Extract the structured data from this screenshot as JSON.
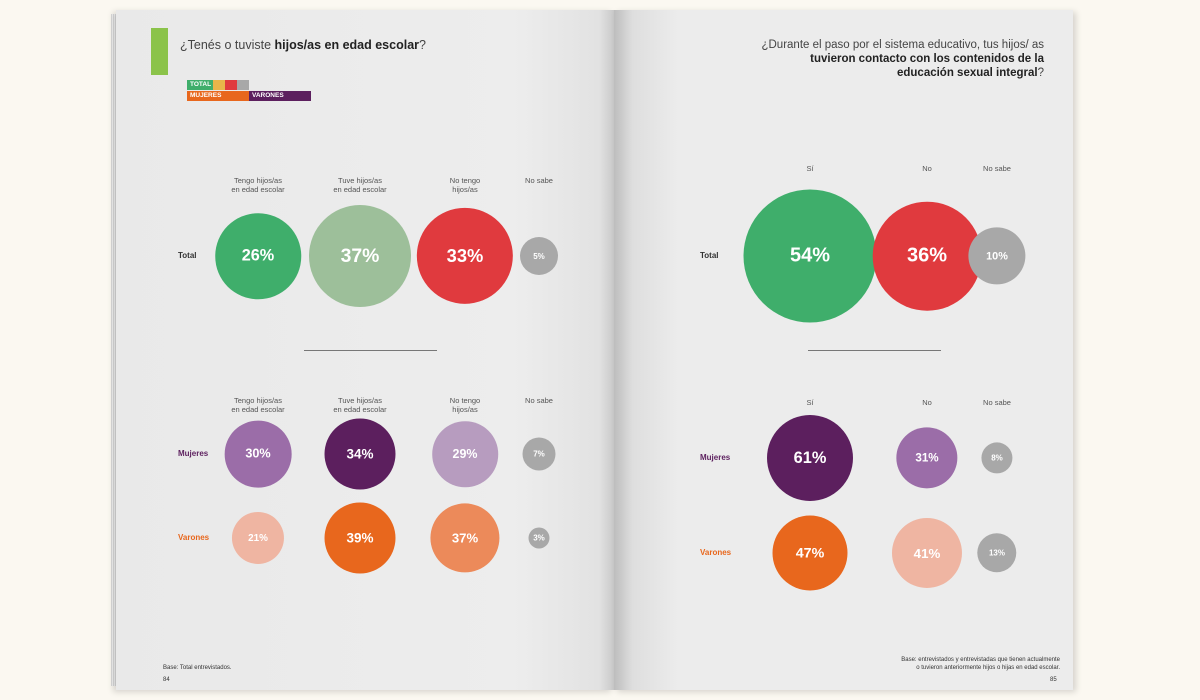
{
  "chart_data": [
    {
      "type": "bubble",
      "title_plain": "¿Tenés o tuviste ",
      "title_bold": "hijos/as en edad escolar",
      "title_tail": "?",
      "legend": {
        "total": "TOTAL",
        "mujeres": "MUJERES",
        "varones": "VARONES"
      },
      "categories": [
        "Tengo hijos/as\nen edad escolar",
        "Tuve hijos/as\nen edad escolar",
        "No tengo\nhijos/as",
        "No sabe"
      ],
      "series": [
        {
          "name": "Total",
          "values": [
            26,
            37,
            33,
            5
          ],
          "labels": [
            "26%",
            "37%",
            "33%",
            "5%"
          ],
          "colors": [
            "#3fae6b",
            "#9dbf9a",
            "#e03a3e",
            "#a8a8a8"
          ]
        },
        {
          "name": "Mujeres",
          "values": [
            30,
            34,
            29,
            7
          ],
          "labels": [
            "30%",
            "34%",
            "29%",
            "7%"
          ],
          "colors": [
            "#9b6da8",
            "#5c1f5e",
            "#b79cbf",
            "#a8a8a8"
          ]
        },
        {
          "name": "Varones",
          "values": [
            21,
            39,
            37,
            3
          ],
          "labels": [
            "21%",
            "39%",
            "37%",
            "3%"
          ],
          "colors": [
            "#efb5a2",
            "#e8671d",
            "#ec8a5a",
            "#a8a8a8"
          ]
        }
      ],
      "footnote": "Base: Total entrevistados.",
      "page_number": "84"
    },
    {
      "type": "bubble",
      "title_plain": "¿Durante el paso por el sistema educativo, tus hijos/ as ",
      "title_bold": "tuvieron contacto con los contenidos de la educación sexual integral",
      "title_tail": "?",
      "categories": [
        "Sí",
        "No",
        "No sabe"
      ],
      "series": [
        {
          "name": "Total",
          "values": [
            54,
            36,
            10
          ],
          "labels": [
            "54%",
            "36%",
            "10%"
          ],
          "colors": [
            "#3fae6b",
            "#e03a3e",
            "#a8a8a8"
          ]
        },
        {
          "name": "Mujeres",
          "values": [
            61,
            31,
            8
          ],
          "labels": [
            "61%",
            "31%",
            "8%"
          ],
          "colors": [
            "#5c1f5e",
            "#9b6da8",
            "#a8a8a8"
          ]
        },
        {
          "name": "Varones",
          "values": [
            47,
            41,
            13
          ],
          "labels": [
            "47%",
            "41%",
            "13%"
          ],
          "colors": [
            "#e8671d",
            "#efb5a2",
            "#a8a8a8"
          ]
        }
      ],
      "footnote": "Base: entrevistados y entrevistadas que tienen actualmente o tuvieron anteriormente hijos o hijas en edad escolar.",
      "page_number": "85"
    }
  ]
}
